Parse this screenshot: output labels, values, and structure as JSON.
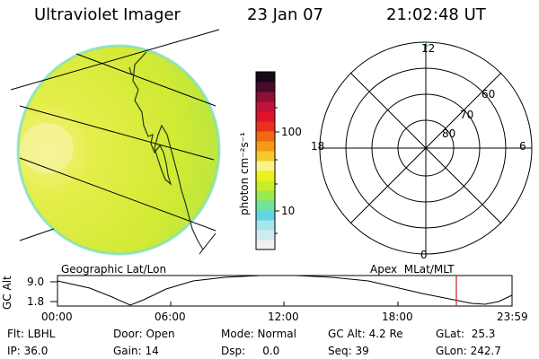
{
  "header": {
    "instrument": "Ultraviolet Imager",
    "date": "23 Jan 07",
    "time": "21:02:48 UT"
  },
  "colorbar": {
    "unit_label": "photon cm⁻²s⁻¹",
    "tick_100": "100",
    "tick_10": "10",
    "colors": [
      "#f0f0f0",
      "#d0eaf0",
      "#a8e4ee",
      "#5fd6e2",
      "#6fe39a",
      "#9be84f",
      "#c8ee28",
      "#eef11a",
      "#f8f48a",
      "#f4c92a",
      "#f49a18",
      "#ef6a10",
      "#e8301a",
      "#e0122c",
      "#c0123a",
      "#8a1036",
      "#4a0a2a",
      "#14081a"
    ]
  },
  "left_map": {
    "label": "Geographic Lat/Lon",
    "fill_color": "#d8ec3a",
    "coastline_color": "#1a3a1a"
  },
  "polar": {
    "label": "Apex  MLat/MLT",
    "mlt_top": "12",
    "mlt_left": "18",
    "mlt_right": "6",
    "mlt_bottom": "0",
    "lat_60": "60",
    "lat_70": "70",
    "lat_80": "80"
  },
  "orbit": {
    "axis_label": "GC Alt",
    "y_top": "9.0",
    "y_bottom": "1.8",
    "x_ticks": [
      "00:00",
      "06:00",
      "12:00",
      "18:00",
      "23:59"
    ],
    "current_time_color": "#cc2222"
  },
  "info": {
    "flt": "Flt: LBHL",
    "ip": "IP: 36.0",
    "door": "Door: Open",
    "gain": "Gain: 14",
    "mode": "Mode: Normal",
    "dsp": "Dsp:     0.0",
    "gc_alt": "GC Alt: 4.2 Re",
    "seq": "Seq: 39",
    "glat": "GLat:  25.3",
    "glon": "GLon: 242.7"
  }
}
